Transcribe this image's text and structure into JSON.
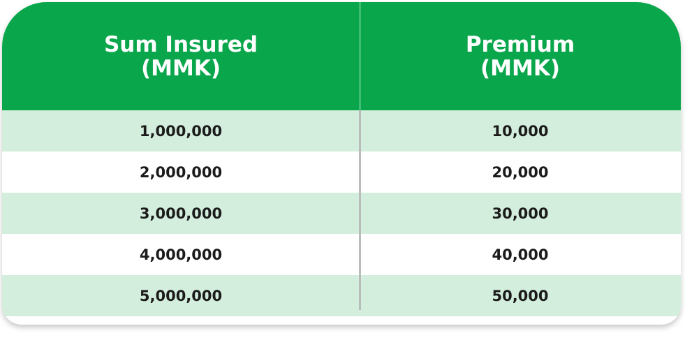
{
  "table": {
    "headers": [
      {
        "line1": "Sum Insured",
        "line2": "(MMK)"
      },
      {
        "line1": "Premium",
        "line2": "(MMK)"
      }
    ],
    "rows": [
      {
        "sum_insured": "1,000,000",
        "premium": "10,000"
      },
      {
        "sum_insured": "2,000,000",
        "premium": "20,000"
      },
      {
        "sum_insured": "3,000,000",
        "premium": "30,000"
      },
      {
        "sum_insured": "4,000,000",
        "premium": "40,000"
      },
      {
        "sum_insured": "5,000,000",
        "premium": "50,000"
      }
    ]
  },
  "colors": {
    "header": "#0aa64b",
    "row_shade": "#d3eedd",
    "row_plain": "#ffffff",
    "divider": "#b9bcbb"
  }
}
